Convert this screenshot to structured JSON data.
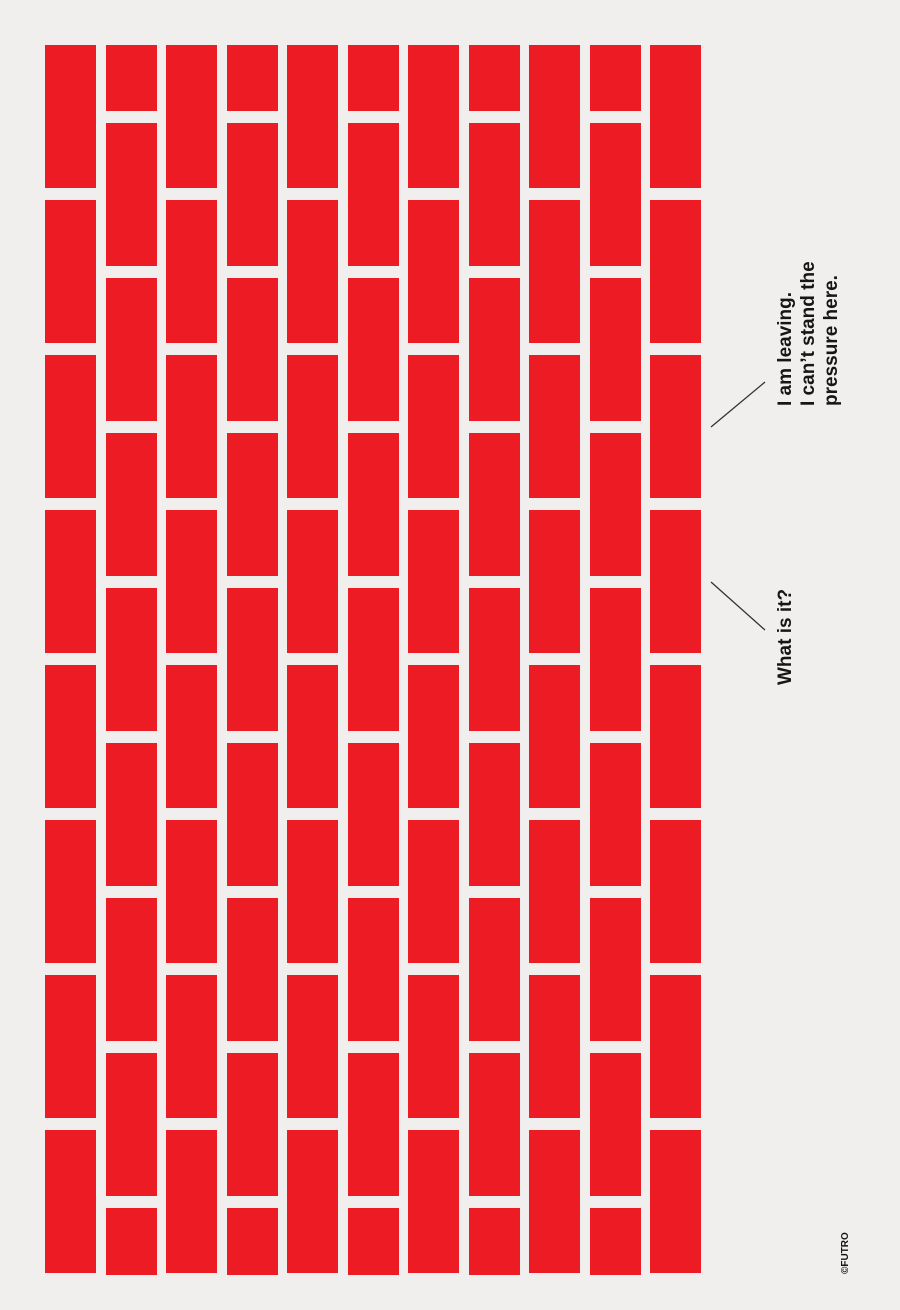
{
  "poster": {
    "background_color": "#f0efed",
    "brick_color": "#ed1c24",
    "brick_wall": {
      "columns": 11,
      "orientation": "vertical running bond"
    },
    "speech": [
      {
        "id": "leaving",
        "text": "I am leaving.\nI can’t stand the\npressure here."
      },
      {
        "id": "whatis",
        "text": "What is it?"
      }
    ],
    "credit": "©FUTRO"
  }
}
